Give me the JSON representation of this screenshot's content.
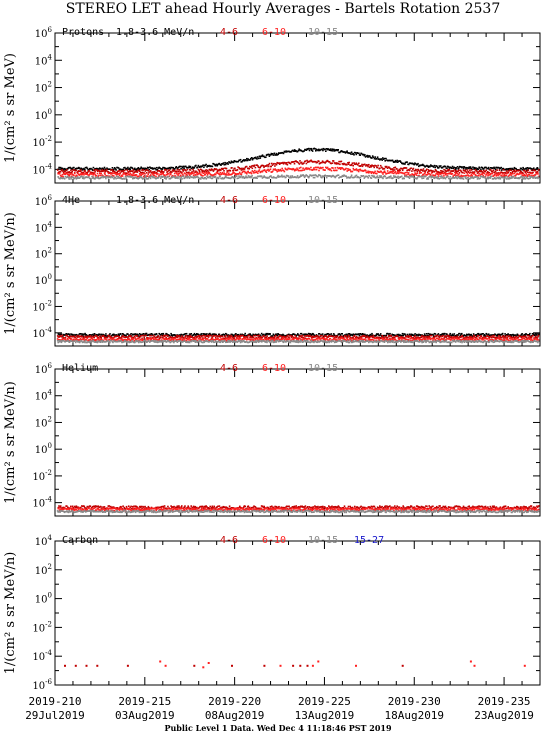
{
  "title": "STEREO LET ahead Hourly Averages - Bartels Rotation 2537",
  "footer": "Public Level 1 Data. Wed Dec  4 11:18:46 PST 2019",
  "colors": {
    "axis": "#000000",
    "ch_4_6": "#c00000",
    "ch_6_10": "#ff2020",
    "ch_10_15": "#888888",
    "ch_15_27": "#1a1acc",
    "ch_1_8_3_6": "#000000"
  },
  "x_axis": {
    "doy_labels": [
      "2019-210",
      "2019-215",
      "2019-220",
      "2019-225",
      "2019-230",
      "2019-235"
    ],
    "date_labels": [
      "29Jul2019",
      "03Aug2019",
      "08Aug2019",
      "13Aug2019",
      "18Aug2019",
      "23Aug2019"
    ],
    "range_doy": [
      210,
      237
    ],
    "major_ticks_doy": [
      210,
      215,
      220,
      225,
      230,
      235
    ]
  },
  "chart_data": [
    {
      "type": "scatter",
      "species": "Protons",
      "energy_label": "1.8-3.6 MeV/n",
      "ylabel": "1/(cm² s sr MeV)",
      "log_scale": true,
      "ylim_exp": [
        -5,
        6
      ],
      "tick_exps": [
        -4,
        -2,
        0,
        2,
        4,
        6
      ],
      "channels": [
        "4-6",
        "6-10",
        "10-15"
      ],
      "series": [
        {
          "name": "1.8-3.6",
          "color_key": "ch_1_8_3_6",
          "base_exp": -3.9,
          "peak_exp": -2.5,
          "peak_doy": 224.5,
          "width_days": 4.5,
          "noise": 0.2
        },
        {
          "name": "4-6",
          "color_key": "ch_4_6",
          "base_exp": -4.1,
          "peak_exp": -3.4,
          "peak_doy": 224.5,
          "width_days": 4.0,
          "noise": 0.25
        },
        {
          "name": "6-10",
          "color_key": "ch_6_10",
          "base_exp": -4.35,
          "peak_exp": -3.9,
          "peak_doy": 224.5,
          "width_days": 4.0,
          "noise": 0.25
        },
        {
          "name": "10-15",
          "color_key": "ch_10_15",
          "base_exp": -4.55,
          "peak_exp": -4.45,
          "peak_doy": 224.5,
          "width_days": 4.0,
          "noise": 0.2
        }
      ]
    },
    {
      "type": "scatter",
      "species": "4He",
      "energy_label": "1.8-3.6 MeV/n",
      "ylabel": "1/(cm² s sr MeV/n)",
      "log_scale": true,
      "ylim_exp": [
        -5,
        6
      ],
      "tick_exps": [
        -4,
        -2,
        0,
        2,
        4,
        6
      ],
      "channels": [
        "4-6",
        "6-10",
        "10-15"
      ],
      "series": [
        {
          "name": "1.8-3.6",
          "color_key": "ch_1_8_3_6",
          "base_exp": -4.1,
          "peak_exp": -4.1,
          "peak_doy": 224.5,
          "width_days": 4.0,
          "noise": 0.2
        },
        {
          "name": "4-6",
          "color_key": "ch_4_6",
          "base_exp": -4.25,
          "peak_exp": -4.25,
          "peak_doy": 224.5,
          "width_days": 4.0,
          "noise": 0.22
        },
        {
          "name": "6-10",
          "color_key": "ch_6_10",
          "base_exp": -4.45,
          "peak_exp": -4.45,
          "peak_doy": 224.5,
          "width_days": 4.0,
          "noise": 0.2
        },
        {
          "name": "10-15",
          "color_key": "ch_10_15",
          "base_exp": -4.6,
          "peak_exp": -4.6,
          "peak_doy": 224.5,
          "width_days": 4.0,
          "noise": 0.15
        }
      ]
    },
    {
      "type": "scatter",
      "species": "Helium",
      "energy_label": "",
      "ylabel": "1/(cm² s sr MeV/n)",
      "log_scale": true,
      "ylim_exp": [
        -5,
        6
      ],
      "tick_exps": [
        -4,
        -2,
        0,
        2,
        4,
        6
      ],
      "channels": [
        "4-6",
        "6-10",
        "10-15"
      ],
      "series": [
        {
          "name": "4-6",
          "color_key": "ch_4_6",
          "base_exp": -4.3,
          "peak_exp": -4.3,
          "peak_doy": 224.5,
          "width_days": 4.0,
          "noise": 0.22
        },
        {
          "name": "6-10",
          "color_key": "ch_6_10",
          "base_exp": -4.45,
          "peak_exp": -4.45,
          "peak_doy": 224.5,
          "width_days": 4.0,
          "noise": 0.2
        },
        {
          "name": "10-15",
          "color_key": "ch_10_15",
          "base_exp": -4.6,
          "peak_exp": -4.6,
          "peak_doy": 224.5,
          "width_days": 4.0,
          "noise": 0.15
        }
      ]
    },
    {
      "type": "scatter",
      "species": "Carbon",
      "energy_label": "",
      "ylabel": "1/(cm² s sr MeV/n)",
      "log_scale": true,
      "ylim_exp": [
        -6,
        4
      ],
      "tick_exps": [
        -6,
        -4,
        -2,
        0,
        2,
        4
      ],
      "channels": [
        "4-6",
        "6-10",
        "10-15",
        "15-27"
      ],
      "points": {
        "ch_6_10": [
          [
            215.8,
            -4.3
          ],
          [
            216.1,
            -4.6
          ],
          [
            218.5,
            -4.4
          ],
          [
            218.2,
            -4.7
          ],
          [
            222.5,
            -4.6
          ],
          [
            224.6,
            -4.3
          ],
          [
            224.3,
            -4.6
          ],
          [
            226.7,
            -4.6
          ],
          [
            233.1,
            -4.3
          ],
          [
            233.3,
            -4.6
          ],
          [
            236.1,
            -4.6
          ]
        ],
        "ch_4_6": [
          [
            210.5,
            -4.6
          ],
          [
            211.1,
            -4.6
          ],
          [
            211.7,
            -4.6
          ],
          [
            212.3,
            -4.6
          ],
          [
            214.0,
            -4.6
          ],
          [
            217.7,
            -4.6
          ],
          [
            219.8,
            -4.6
          ],
          [
            221.6,
            -4.6
          ],
          [
            223.2,
            -4.6
          ],
          [
            223.6,
            -4.6
          ],
          [
            224.0,
            -4.6
          ],
          [
            229.3,
            -4.6
          ]
        ]
      }
    }
  ]
}
